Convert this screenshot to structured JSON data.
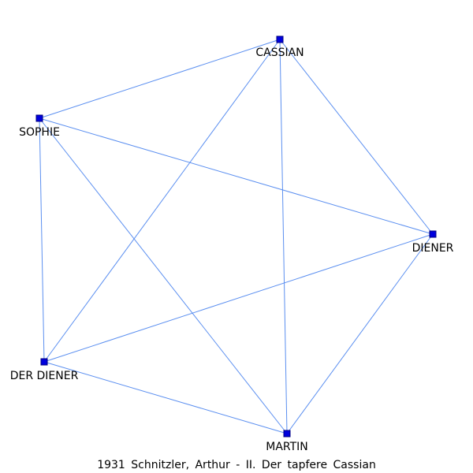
{
  "caption": "1931 Schnitzler, Arthur - II. Der tapfere Cassian",
  "colors": {
    "edge": "#5b8ff0",
    "node_fill": "#0000dd",
    "node_stroke": "#000080",
    "label": "#000000"
  },
  "nodes": [
    {
      "id": "cassian",
      "label": "CASSIAN"
    },
    {
      "id": "sophie",
      "label": "SOPHIE"
    },
    {
      "id": "diener",
      "label": "DIENER"
    },
    {
      "id": "der-diener",
      "label": "DER DIENER"
    },
    {
      "id": "martin",
      "label": "MARTIN"
    }
  ],
  "edges": [
    [
      "sophie",
      "cassian"
    ],
    [
      "cassian",
      "der-diener"
    ],
    [
      "cassian",
      "martin"
    ],
    [
      "cassian",
      "diener"
    ],
    [
      "sophie",
      "diener"
    ],
    [
      "sophie",
      "der-diener"
    ],
    [
      "sophie",
      "martin"
    ],
    [
      "diener",
      "der-diener"
    ],
    [
      "diener",
      "martin"
    ],
    [
      "der-diener",
      "martin"
    ]
  ]
}
